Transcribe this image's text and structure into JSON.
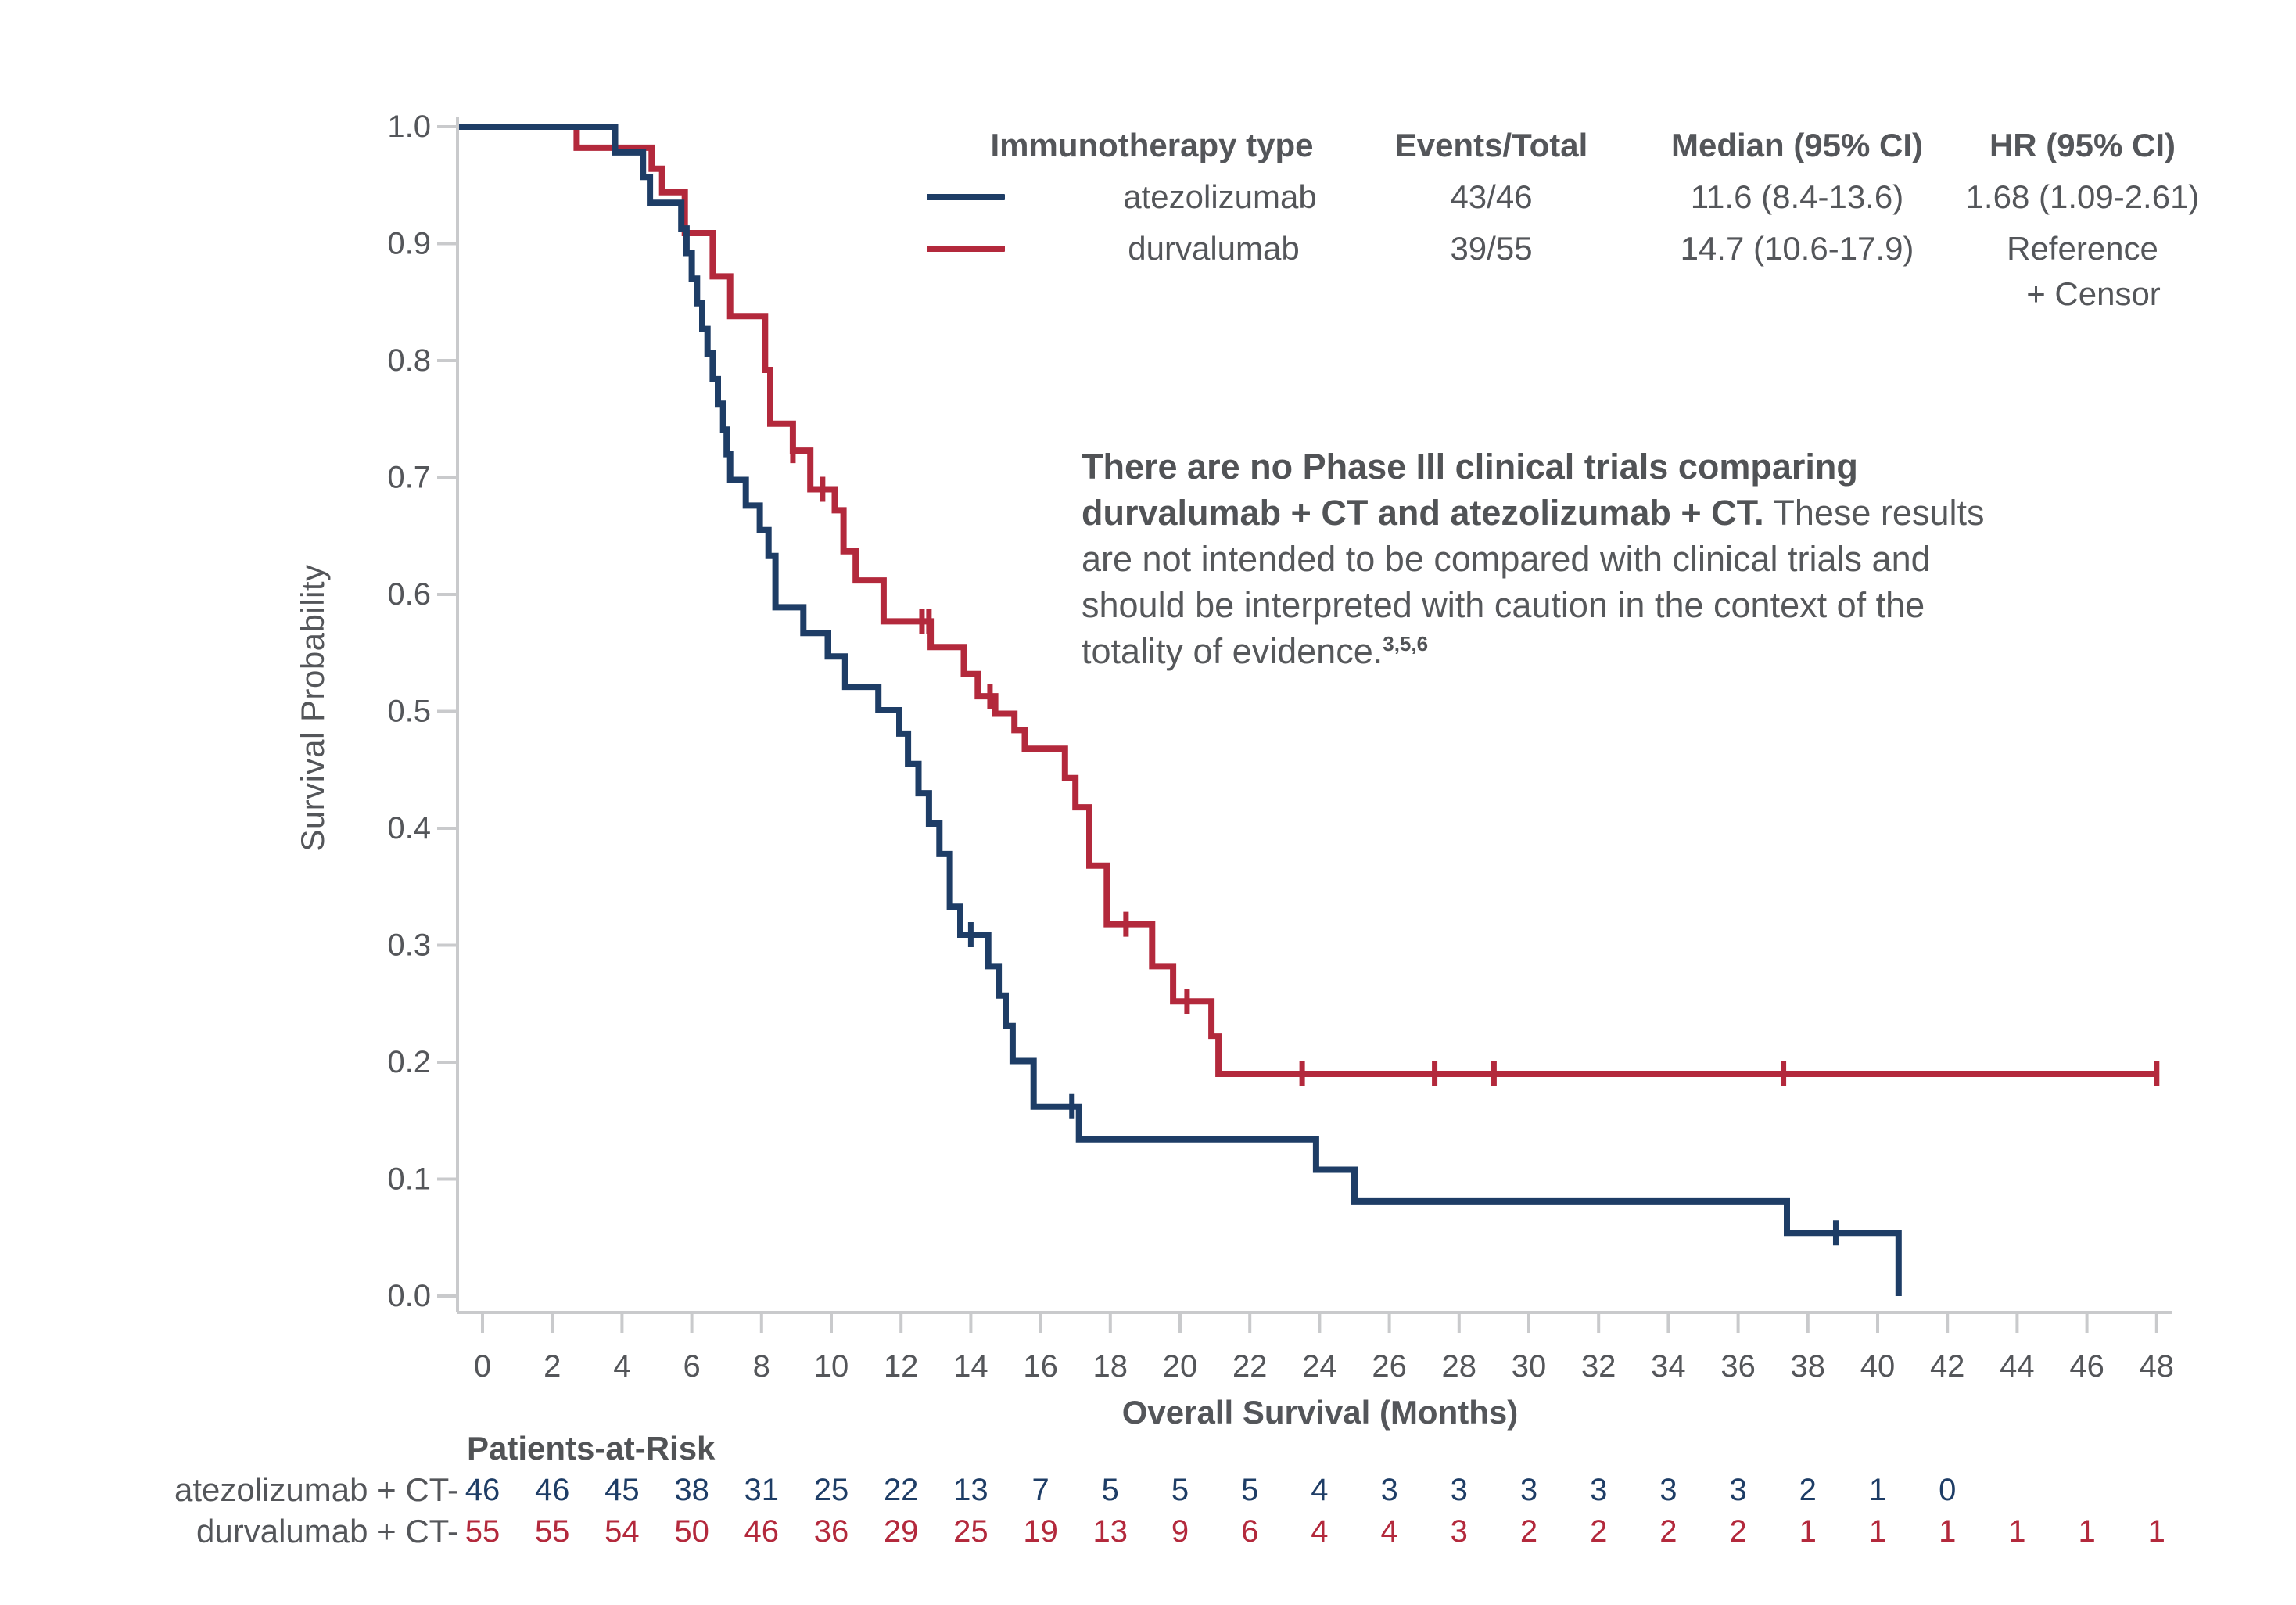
{
  "colors": {
    "atezolizumab": "#1e3d66",
    "durvalumab": "#b3293c",
    "text_dark": "#54565a",
    "axis_gray": "#c9cacc"
  },
  "legend": {
    "headers": [
      "Immunotherapy type",
      "Events/Total",
      "Median (95% CI)",
      "HR (95% CI)"
    ],
    "rows": [
      {
        "name": "atezolizumab",
        "events_total": "43/46",
        "median": "11.6 (8.4-13.6)",
        "hr": "1.68 (1.09-2.61)",
        "color": "#1e3d66"
      },
      {
        "name": "durvalumab",
        "events_total": "39/55",
        "median": "14.7 (10.6-17.9)",
        "hr": "Reference",
        "color": "#b3293c"
      }
    ],
    "censor_note": "+ Censor"
  },
  "annotation": {
    "lines": [
      {
        "bold": "There are no Phase Ill clinical trials comparing",
        "regular": "",
        "sup": ""
      },
      {
        "bold": "durvalumab + CT and atezolizumab + CT.",
        "regular": " These results",
        "sup": ""
      },
      {
        "bold": "",
        "regular": "are not intended to be compared with clinical trials and",
        "sup": ""
      },
      {
        "bold": "",
        "regular": "should be interpreted with caution in the context of the",
        "sup": ""
      },
      {
        "bold": "",
        "regular": "totality of evidence.",
        "sup": "3,5,6"
      }
    ]
  },
  "chart_data": {
    "type": "line",
    "subtype": "kaplan-meier-step",
    "title": "",
    "xlabel": "Overall Survival (Months)",
    "ylabel": "Survival Probability",
    "xlim": [
      0,
      48
    ],
    "ylim": [
      0.0,
      1.0
    ],
    "grid": false,
    "legend_position": "top-right",
    "xticks": [
      0,
      2,
      4,
      6,
      8,
      10,
      12,
      14,
      16,
      18,
      20,
      22,
      24,
      26,
      28,
      30,
      32,
      34,
      36,
      38,
      40,
      42,
      44,
      46,
      48
    ],
    "yticks": [
      "1.0",
      "0.9",
      "0.8",
      "0.7",
      "0.6",
      "0.5",
      "0.4",
      "0.3",
      "0.2",
      "0.1",
      "0.0"
    ],
    "series": [
      {
        "name": "durvalumab",
        "color": "#b3293c",
        "start": [
          0,
          1.0
        ],
        "steps": [
          [
            2.7,
            0.982
          ],
          [
            4.85,
            0.964
          ],
          [
            5.15,
            0.944
          ],
          [
            5.8,
            0.909
          ],
          [
            6.6,
            0.872
          ],
          [
            7.1,
            0.838
          ],
          [
            8.1,
            0.792
          ],
          [
            8.25,
            0.746
          ],
          [
            8.9,
            0.723
          ],
          [
            9.4,
            0.69
          ],
          [
            10.1,
            0.672
          ],
          [
            10.35,
            0.637
          ],
          [
            10.7,
            0.612
          ],
          [
            11.5,
            0.577
          ],
          [
            12.85,
            0.555
          ],
          [
            13.8,
            0.532
          ],
          [
            14.2,
            0.513
          ],
          [
            14.7,
            0.498
          ],
          [
            15.25,
            0.484
          ],
          [
            15.55,
            0.468
          ],
          [
            16.7,
            0.443
          ],
          [
            17.0,
            0.418
          ],
          [
            17.4,
            0.368
          ],
          [
            17.9,
            0.318
          ],
          [
            19.2,
            0.282
          ],
          [
            19.8,
            0.252
          ],
          [
            20.9,
            0.222
          ],
          [
            21.1,
            0.19
          ]
        ],
        "plateau_end": 48,
        "censors": [
          [
            8.9,
            0.723
          ],
          [
            9.75,
            0.69
          ],
          [
            12.6,
            0.577
          ],
          [
            12.8,
            0.577
          ],
          [
            14.55,
            0.513
          ],
          [
            18.45,
            0.318
          ],
          [
            20.2,
            0.252
          ],
          [
            23.5,
            0.19
          ],
          [
            27.3,
            0.19
          ],
          [
            29.0,
            0.19
          ],
          [
            37.3,
            0.19
          ],
          [
            48,
            0.19
          ]
        ]
      },
      {
        "name": "atezolizumab",
        "color": "#1e3d66",
        "start": [
          0,
          1.0
        ],
        "steps": [
          [
            3.8,
            0.978
          ],
          [
            4.6,
            0.957
          ],
          [
            4.8,
            0.935
          ],
          [
            5.7,
            0.913
          ],
          [
            5.85,
            0.892
          ],
          [
            6.0,
            0.87
          ],
          [
            6.15,
            0.849
          ],
          [
            6.3,
            0.827
          ],
          [
            6.45,
            0.806
          ],
          [
            6.6,
            0.784
          ],
          [
            6.75,
            0.763
          ],
          [
            6.9,
            0.741
          ],
          [
            7.0,
            0.72
          ],
          [
            7.1,
            0.698
          ],
          [
            7.55,
            0.676
          ],
          [
            7.95,
            0.655
          ],
          [
            8.2,
            0.633
          ],
          [
            8.4,
            0.589
          ],
          [
            9.2,
            0.567
          ],
          [
            9.9,
            0.547
          ],
          [
            10.4,
            0.521
          ],
          [
            11.35,
            0.501
          ],
          [
            11.95,
            0.481
          ],
          [
            12.2,
            0.455
          ],
          [
            12.5,
            0.43
          ],
          [
            12.8,
            0.404
          ],
          [
            13.1,
            0.378
          ],
          [
            13.4,
            0.333
          ],
          [
            13.7,
            0.309
          ],
          [
            14.5,
            0.282
          ],
          [
            14.8,
            0.257
          ],
          [
            15.0,
            0.231
          ],
          [
            15.2,
            0.201
          ],
          [
            15.8,
            0.162
          ],
          [
            17.1,
            0.134
          ],
          [
            23.9,
            0.108
          ],
          [
            25.0,
            0.081
          ],
          [
            37.4,
            0.054
          ],
          [
            40.6,
            0.0
          ]
        ],
        "plateau_end": null,
        "censors": [
          [
            14.0,
            0.309
          ],
          [
            16.9,
            0.162
          ],
          [
            38.8,
            0.054
          ]
        ]
      }
    ],
    "at_risk": {
      "title": "Patients-at-Risk",
      "times": [
        0,
        2,
        4,
        6,
        8,
        10,
        12,
        14,
        16,
        18,
        20,
        22,
        24,
        26,
        28,
        30,
        32,
        34,
        36,
        38,
        40,
        42,
        44,
        46,
        48
      ],
      "rows": [
        {
          "label": "atezolizumab + CT-",
          "color": "#1e3d66",
          "values": [
            "46",
            "46",
            "45",
            "38",
            "31",
            "25",
            "22",
            "13",
            "7",
            "5",
            "5",
            "5",
            "4",
            "3",
            "3",
            "3",
            "3",
            "3",
            "3",
            "2",
            "1",
            "0"
          ]
        },
        {
          "label": "durvalumab + CT-",
          "color": "#b3293c",
          "values": [
            "55",
            "55",
            "54",
            "50",
            "46",
            "36",
            "29",
            "25",
            "19",
            "13",
            "9",
            "6",
            "4",
            "4",
            "3",
            "2",
            "2",
            "2",
            "2",
            "1",
            "1",
            "1",
            "1",
            "1",
            "1"
          ]
        }
      ]
    }
  }
}
